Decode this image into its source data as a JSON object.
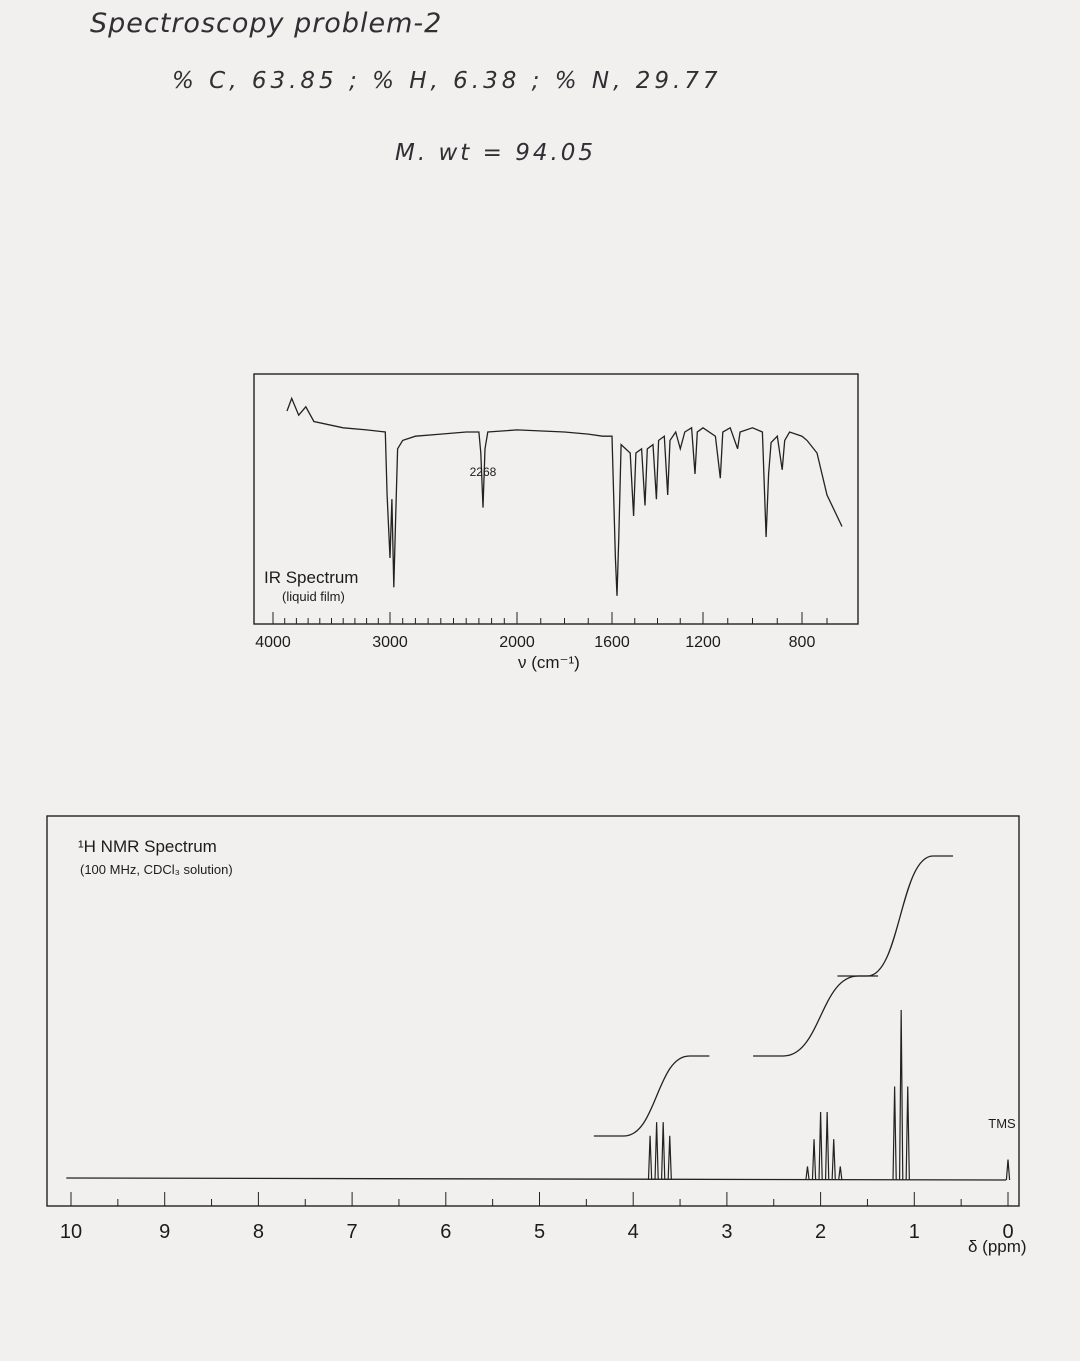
{
  "handwriting": {
    "title": "Spectroscopy problem-2",
    "composition": "% C, 63.85 ; % H, 6.38 ; % N, 29.77",
    "molecular_weight": "M. wt = 94.05"
  },
  "chart_data": [
    {
      "type": "line",
      "title": "IR Spectrum",
      "subtitle": "(liquid film)",
      "xlabel": "ν (cm⁻¹)",
      "xlim": [
        4000,
        600
      ],
      "x_ticks": [
        "4000",
        "3000",
        "2000",
        "1600",
        "1200",
        "800"
      ],
      "x_tick_values": [
        4000,
        3000,
        2000,
        1600,
        1200,
        800
      ],
      "annotations": [
        {
          "x": 2268,
          "text": "2268"
        }
      ],
      "y_unit": "transmittance (0-100, 100 = baseline top)",
      "points": [
        [
          3880,
          90
        ],
        [
          3840,
          96
        ],
        [
          3780,
          88
        ],
        [
          3720,
          92
        ],
        [
          3650,
          85
        ],
        [
          3400,
          82
        ],
        [
          3200,
          81
        ],
        [
          3040,
          80
        ],
        [
          3025,
          50
        ],
        [
          3000,
          20
        ],
        [
          2985,
          48
        ],
        [
          2970,
          6
        ],
        [
          2955,
          40
        ],
        [
          2940,
          72
        ],
        [
          2900,
          76
        ],
        [
          2800,
          78
        ],
        [
          2600,
          79
        ],
        [
          2400,
          80
        ],
        [
          2300,
          80
        ],
        [
          2285,
          70
        ],
        [
          2268,
          44
        ],
        [
          2252,
          72
        ],
        [
          2230,
          80
        ],
        [
          2000,
          81
        ],
        [
          1800,
          80
        ],
        [
          1700,
          79
        ],
        [
          1640,
          78
        ],
        [
          1600,
          78
        ],
        [
          1585,
          20
        ],
        [
          1578,
          2
        ],
        [
          1570,
          30
        ],
        [
          1560,
          74
        ],
        [
          1520,
          70
        ],
        [
          1505,
          40
        ],
        [
          1495,
          70
        ],
        [
          1470,
          72
        ],
        [
          1455,
          45
        ],
        [
          1445,
          72
        ],
        [
          1420,
          74
        ],
        [
          1405,
          48
        ],
        [
          1395,
          76
        ],
        [
          1370,
          78
        ],
        [
          1355,
          50
        ],
        [
          1345,
          76
        ],
        [
          1320,
          80
        ],
        [
          1300,
          72
        ],
        [
          1280,
          80
        ],
        [
          1250,
          82
        ],
        [
          1235,
          60
        ],
        [
          1225,
          80
        ],
        [
          1200,
          82
        ],
        [
          1150,
          78
        ],
        [
          1130,
          58
        ],
        [
          1120,
          80
        ],
        [
          1090,
          82
        ],
        [
          1060,
          72
        ],
        [
          1050,
          80
        ],
        [
          1000,
          82
        ],
        [
          960,
          80
        ],
        [
          945,
          30
        ],
        [
          935,
          60
        ],
        [
          925,
          75
        ],
        [
          900,
          78
        ],
        [
          880,
          62
        ],
        [
          870,
          76
        ],
        [
          850,
          80
        ],
        [
          800,
          78
        ],
        [
          780,
          76
        ],
        [
          740,
          70
        ],
        [
          700,
          50
        ],
        [
          640,
          35
        ]
      ]
    },
    {
      "type": "line",
      "title": "¹H NMR Spectrum",
      "subtitle": "(100 MHz, CDCl₃ solution)",
      "xlabel": "δ (ppm)",
      "xlim": [
        10,
        0
      ],
      "x_ticks": [
        "10",
        "9",
        "8",
        "7",
        "6",
        "5",
        "4",
        "3",
        "2",
        "1",
        "0"
      ],
      "x_tick_values": [
        10,
        9,
        8,
        7,
        6,
        5,
        4,
        3,
        2,
        1,
        0
      ],
      "annotations": [
        {
          "x": 0,
          "text": "TMS"
        }
      ],
      "peaks": [
        {
          "ppm": 3.82,
          "height": 26
        },
        {
          "ppm": 3.75,
          "height": 34
        },
        {
          "ppm": 3.68,
          "height": 34
        },
        {
          "ppm": 3.61,
          "height": 26
        },
        {
          "ppm": 2.14,
          "height": 8
        },
        {
          "ppm": 2.07,
          "height": 24
        },
        {
          "ppm": 2.0,
          "height": 40
        },
        {
          "ppm": 1.93,
          "height": 40
        },
        {
          "ppm": 1.86,
          "height": 24
        },
        {
          "ppm": 1.79,
          "height": 8
        },
        {
          "ppm": 1.21,
          "height": 55
        },
        {
          "ppm": 1.14,
          "height": 100
        },
        {
          "ppm": 1.07,
          "height": 55
        },
        {
          "ppm": 0.0,
          "height": 12
        }
      ],
      "integration": [
        {
          "from": 4.1,
          "to": 3.4,
          "start": 0,
          "end": 2
        },
        {
          "from": 2.4,
          "to": 1.6,
          "start": 2,
          "end": 4
        },
        {
          "from": 1.5,
          "to": 0.8,
          "start": 4,
          "end": 7
        }
      ]
    }
  ]
}
